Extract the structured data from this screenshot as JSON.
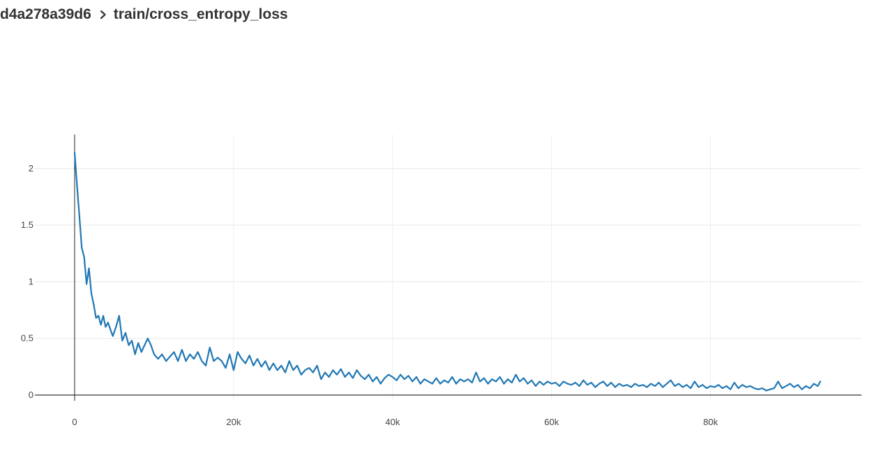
{
  "breadcrumb": {
    "run_id": "d4a278a39d6",
    "separator_icon": "chevron-right-icon",
    "metric": "train/cross_entropy_loss"
  },
  "chart_data": {
    "type": "line",
    "title": "",
    "xlabel": "",
    "ylabel": "",
    "xlim": [
      -5000,
      99000
    ],
    "ylim": [
      -0.05,
      2.3
    ],
    "grid": true,
    "legend": "none",
    "x_ticks": [
      {
        "value": 0,
        "label": "0"
      },
      {
        "value": 20000,
        "label": "20k"
      },
      {
        "value": 40000,
        "label": "40k"
      },
      {
        "value": 60000,
        "label": "60k"
      },
      {
        "value": 80000,
        "label": "80k"
      }
    ],
    "y_ticks": [
      {
        "value": 0,
        "label": "0"
      },
      {
        "value": 0.5,
        "label": "0.5"
      },
      {
        "value": 1,
        "label": "1"
      },
      {
        "value": 1.5,
        "label": "1.5"
      },
      {
        "value": 2,
        "label": "2"
      }
    ],
    "series": [
      {
        "color": "#1f77b4",
        "points": [
          [
            0,
            2.14
          ],
          [
            300,
            1.85
          ],
          [
            600,
            1.58
          ],
          [
            900,
            1.3
          ],
          [
            1200,
            1.22
          ],
          [
            1500,
            0.98
          ],
          [
            1800,
            1.12
          ],
          [
            2100,
            0.9
          ],
          [
            2400,
            0.8
          ],
          [
            2700,
            0.68
          ],
          [
            3000,
            0.7
          ],
          [
            3300,
            0.62
          ],
          [
            3600,
            0.7
          ],
          [
            3900,
            0.6
          ],
          [
            4200,
            0.64
          ],
          [
            4500,
            0.58
          ],
          [
            4800,
            0.52
          ],
          [
            5200,
            0.6
          ],
          [
            5600,
            0.7
          ],
          [
            6000,
            0.48
          ],
          [
            6400,
            0.55
          ],
          [
            6800,
            0.44
          ],
          [
            7200,
            0.48
          ],
          [
            7600,
            0.36
          ],
          [
            8000,
            0.46
          ],
          [
            8400,
            0.38
          ],
          [
            8800,
            0.44
          ],
          [
            9200,
            0.5
          ],
          [
            9600,
            0.44
          ],
          [
            10000,
            0.36
          ],
          [
            10500,
            0.32
          ],
          [
            11000,
            0.36
          ],
          [
            11500,
            0.3
          ],
          [
            12000,
            0.34
          ],
          [
            12500,
            0.38
          ],
          [
            13000,
            0.3
          ],
          [
            13500,
            0.4
          ],
          [
            14000,
            0.3
          ],
          [
            14500,
            0.36
          ],
          [
            15000,
            0.32
          ],
          [
            15500,
            0.38
          ],
          [
            16000,
            0.3
          ],
          [
            16500,
            0.26
          ],
          [
            17000,
            0.42
          ],
          [
            17500,
            0.3
          ],
          [
            18000,
            0.33
          ],
          [
            18500,
            0.3
          ],
          [
            19000,
            0.24
          ],
          [
            19500,
            0.36
          ],
          [
            20000,
            0.22
          ],
          [
            20500,
            0.38
          ],
          [
            21000,
            0.32
          ],
          [
            21500,
            0.28
          ],
          [
            22000,
            0.35
          ],
          [
            22500,
            0.26
          ],
          [
            23000,
            0.32
          ],
          [
            23500,
            0.25
          ],
          [
            24000,
            0.3
          ],
          [
            24500,
            0.22
          ],
          [
            25000,
            0.28
          ],
          [
            25500,
            0.22
          ],
          [
            26000,
            0.26
          ],
          [
            26500,
            0.2
          ],
          [
            27000,
            0.3
          ],
          [
            27500,
            0.22
          ],
          [
            28000,
            0.26
          ],
          [
            28500,
            0.18
          ],
          [
            29000,
            0.22
          ],
          [
            29500,
            0.24
          ],
          [
            30000,
            0.2
          ],
          [
            30500,
            0.26
          ],
          [
            31000,
            0.14
          ],
          [
            31500,
            0.2
          ],
          [
            32000,
            0.16
          ],
          [
            32500,
            0.22
          ],
          [
            33000,
            0.18
          ],
          [
            33500,
            0.23
          ],
          [
            34000,
            0.16
          ],
          [
            34500,
            0.2
          ],
          [
            35000,
            0.15
          ],
          [
            35500,
            0.22
          ],
          [
            36000,
            0.17
          ],
          [
            36500,
            0.14
          ],
          [
            37000,
            0.18
          ],
          [
            37500,
            0.12
          ],
          [
            38000,
            0.16
          ],
          [
            38500,
            0.1
          ],
          [
            39000,
            0.15
          ],
          [
            39500,
            0.18
          ],
          [
            40000,
            0.16
          ],
          [
            40500,
            0.13
          ],
          [
            41000,
            0.18
          ],
          [
            41500,
            0.14
          ],
          [
            42000,
            0.17
          ],
          [
            42500,
            0.12
          ],
          [
            43000,
            0.16
          ],
          [
            43500,
            0.1
          ],
          [
            44000,
            0.14
          ],
          [
            44500,
            0.12
          ],
          [
            45000,
            0.1
          ],
          [
            45500,
            0.15
          ],
          [
            46000,
            0.1
          ],
          [
            46500,
            0.13
          ],
          [
            47000,
            0.11
          ],
          [
            47500,
            0.16
          ],
          [
            48000,
            0.1
          ],
          [
            48500,
            0.14
          ],
          [
            49000,
            0.12
          ],
          [
            49500,
            0.14
          ],
          [
            50000,
            0.11
          ],
          [
            50500,
            0.2
          ],
          [
            51000,
            0.12
          ],
          [
            51500,
            0.15
          ],
          [
            52000,
            0.1
          ],
          [
            52500,
            0.14
          ],
          [
            53000,
            0.12
          ],
          [
            53500,
            0.16
          ],
          [
            54000,
            0.1
          ],
          [
            54500,
            0.14
          ],
          [
            55000,
            0.11
          ],
          [
            55500,
            0.18
          ],
          [
            56000,
            0.12
          ],
          [
            56500,
            0.15
          ],
          [
            57000,
            0.1
          ],
          [
            57500,
            0.13
          ],
          [
            58000,
            0.08
          ],
          [
            58500,
            0.12
          ],
          [
            59000,
            0.09
          ],
          [
            59500,
            0.12
          ],
          [
            60000,
            0.1
          ],
          [
            60500,
            0.11
          ],
          [
            61000,
            0.08
          ],
          [
            61500,
            0.12
          ],
          [
            62000,
            0.1
          ],
          [
            62500,
            0.09
          ],
          [
            63000,
            0.11
          ],
          [
            63500,
            0.08
          ],
          [
            64000,
            0.13
          ],
          [
            64500,
            0.09
          ],
          [
            65000,
            0.11
          ],
          [
            65500,
            0.07
          ],
          [
            66000,
            0.1
          ],
          [
            66500,
            0.12
          ],
          [
            67000,
            0.08
          ],
          [
            67500,
            0.11
          ],
          [
            68000,
            0.07
          ],
          [
            68500,
            0.1
          ],
          [
            69000,
            0.08
          ],
          [
            69500,
            0.09
          ],
          [
            70000,
            0.07
          ],
          [
            70500,
            0.1
          ],
          [
            71000,
            0.08
          ],
          [
            71500,
            0.09
          ],
          [
            72000,
            0.07
          ],
          [
            72500,
            0.1
          ],
          [
            73000,
            0.08
          ],
          [
            73500,
            0.11
          ],
          [
            74000,
            0.07
          ],
          [
            74500,
            0.1
          ],
          [
            75000,
            0.13
          ],
          [
            75500,
            0.08
          ],
          [
            76000,
            0.1
          ],
          [
            76500,
            0.07
          ],
          [
            77000,
            0.09
          ],
          [
            77500,
            0.06
          ],
          [
            78000,
            0.12
          ],
          [
            78500,
            0.07
          ],
          [
            79000,
            0.09
          ],
          [
            79500,
            0.06
          ],
          [
            80000,
            0.08
          ],
          [
            80500,
            0.07
          ],
          [
            81000,
            0.09
          ],
          [
            81500,
            0.06
          ],
          [
            82000,
            0.08
          ],
          [
            82500,
            0.05
          ],
          [
            83000,
            0.11
          ],
          [
            83500,
            0.06
          ],
          [
            84000,
            0.09
          ],
          [
            84500,
            0.07
          ],
          [
            85000,
            0.08
          ],
          [
            85500,
            0.06
          ],
          [
            86000,
            0.05
          ],
          [
            86500,
            0.06
          ],
          [
            87000,
            0.04
          ],
          [
            87500,
            0.05
          ],
          [
            88000,
            0.06
          ],
          [
            88500,
            0.12
          ],
          [
            89000,
            0.06
          ],
          [
            89500,
            0.08
          ],
          [
            90000,
            0.1
          ],
          [
            90500,
            0.07
          ],
          [
            91000,
            0.09
          ],
          [
            91500,
            0.05
          ],
          [
            92000,
            0.08
          ],
          [
            92500,
            0.06
          ],
          [
            93000,
            0.1
          ],
          [
            93500,
            0.08
          ],
          [
            93800,
            0.12
          ]
        ]
      }
    ]
  }
}
